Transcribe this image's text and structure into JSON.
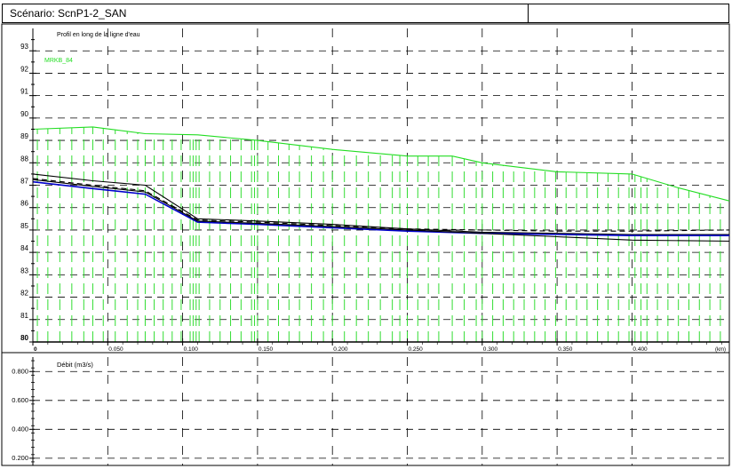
{
  "header": {
    "scenario_label": "Scénario: ScnP1-2_SAN"
  },
  "chart_data": [
    {
      "type": "line",
      "title": "Profil en long de la ligne d'eau",
      "xlabel": "",
      "x_unit": "(km)",
      "ylabel": "",
      "xlim": [
        0,
        0.465
      ],
      "ylim": [
        80,
        94
      ],
      "x_ticks": [
        0,
        0.05,
        0.1,
        0.15,
        0.2,
        0.25,
        0.3,
        0.35,
        0.4
      ],
      "x_tick_labels": [
        "0",
        "0.050",
        "0.100",
        "0.150",
        "0.200",
        "0.250",
        "0.300",
        "0.350",
        "0.400"
      ],
      "y_ticks": [
        80,
        81,
        82,
        83,
        84,
        85,
        86,
        87,
        88,
        89,
        90,
        91,
        92,
        93
      ],
      "y_tick_labels": [
        "80",
        "81",
        "82",
        "83",
        "84",
        "85",
        "86",
        "87",
        "88",
        "89",
        "90",
        "91",
        "92",
        "93"
      ],
      "grid": true,
      "legend": [
        {
          "label": "MRKB_84",
          "color": "#22dd22",
          "position": "top-left"
        }
      ],
      "series": [
        {
          "color": "#22dd22",
          "dash": "solid",
          "x": [
            0,
            0.04,
            0.075,
            0.11,
            0.15,
            0.2,
            0.25,
            0.28,
            0.3,
            0.35,
            0.4,
            0.43,
            0.465
          ],
          "y": [
            89.5,
            89.6,
            89.3,
            89.25,
            89.0,
            88.6,
            88.3,
            88.3,
            88.0,
            87.6,
            87.5,
            86.9,
            86.3
          ]
        },
        {
          "color": "#000000",
          "dash": "solid",
          "x": [
            0,
            0.04,
            0.075,
            0.11,
            0.15,
            0.2,
            0.25,
            0.3,
            0.35,
            0.4,
            0.465
          ],
          "y": [
            87.5,
            87.2,
            87.0,
            85.5,
            85.4,
            85.25,
            85.05,
            84.9,
            84.85,
            84.8,
            84.8
          ]
        },
        {
          "color": "#0000cc",
          "dash": "solid",
          "x": [
            0,
            0.04,
            0.075,
            0.11,
            0.15,
            0.2,
            0.25,
            0.3,
            0.35,
            0.4,
            0.465
          ],
          "y": [
            87.15,
            86.85,
            86.6,
            85.35,
            85.25,
            85.1,
            84.95,
            84.85,
            84.8,
            84.75,
            84.75
          ]
        },
        {
          "color": "#000000",
          "dash": "solid",
          "x": [
            0,
            0.04,
            0.075,
            0.11,
            0.15,
            0.2,
            0.25,
            0.3,
            0.35,
            0.4,
            0.465
          ],
          "y": [
            87.25,
            86.95,
            86.7,
            85.4,
            85.3,
            85.15,
            85.0,
            84.85,
            84.7,
            84.55,
            84.5
          ]
        },
        {
          "color": "#000000",
          "dash": "dashed",
          "x": [
            0,
            0.04,
            0.075,
            0.11,
            0.15,
            0.2,
            0.25,
            0.3,
            0.35,
            0.4,
            0.465
          ],
          "y": [
            87.3,
            87.0,
            86.75,
            85.45,
            85.35,
            85.2,
            85.05,
            85.0,
            84.95,
            84.95,
            85.0
          ]
        }
      ],
      "cross_sections": [
        0.003,
        0.01,
        0.018,
        0.026,
        0.034,
        0.04,
        0.047,
        0.055,
        0.063,
        0.07,
        0.075,
        0.081,
        0.087,
        0.093,
        0.099,
        0.105,
        0.107,
        0.109,
        0.111,
        0.118,
        0.125,
        0.132,
        0.139,
        0.146,
        0.148,
        0.15,
        0.157,
        0.164,
        0.171,
        0.178,
        0.186,
        0.194,
        0.2,
        0.208,
        0.216,
        0.224,
        0.232,
        0.24,
        0.245,
        0.25,
        0.257,
        0.264,
        0.271,
        0.28,
        0.288,
        0.296,
        0.3,
        0.307,
        0.314,
        0.321,
        0.328,
        0.335,
        0.342,
        0.349,
        0.356,
        0.363,
        0.37,
        0.377,
        0.384,
        0.391,
        0.398,
        0.402,
        0.406,
        0.41,
        0.417,
        0.424,
        0.431,
        0.438,
        0.445,
        0.452,
        0.459
      ]
    },
    {
      "type": "line",
      "title": "Débit (m3/s)",
      "xlim": [
        0,
        0.465
      ],
      "ylim": [
        0.15,
        0.9
      ],
      "y_ticks": [
        0.2,
        0.4,
        0.6,
        0.8
      ],
      "y_tick_labels": [
        "0.200",
        "0.400",
        "0.600",
        "0.800"
      ],
      "grid": true,
      "series": []
    }
  ]
}
